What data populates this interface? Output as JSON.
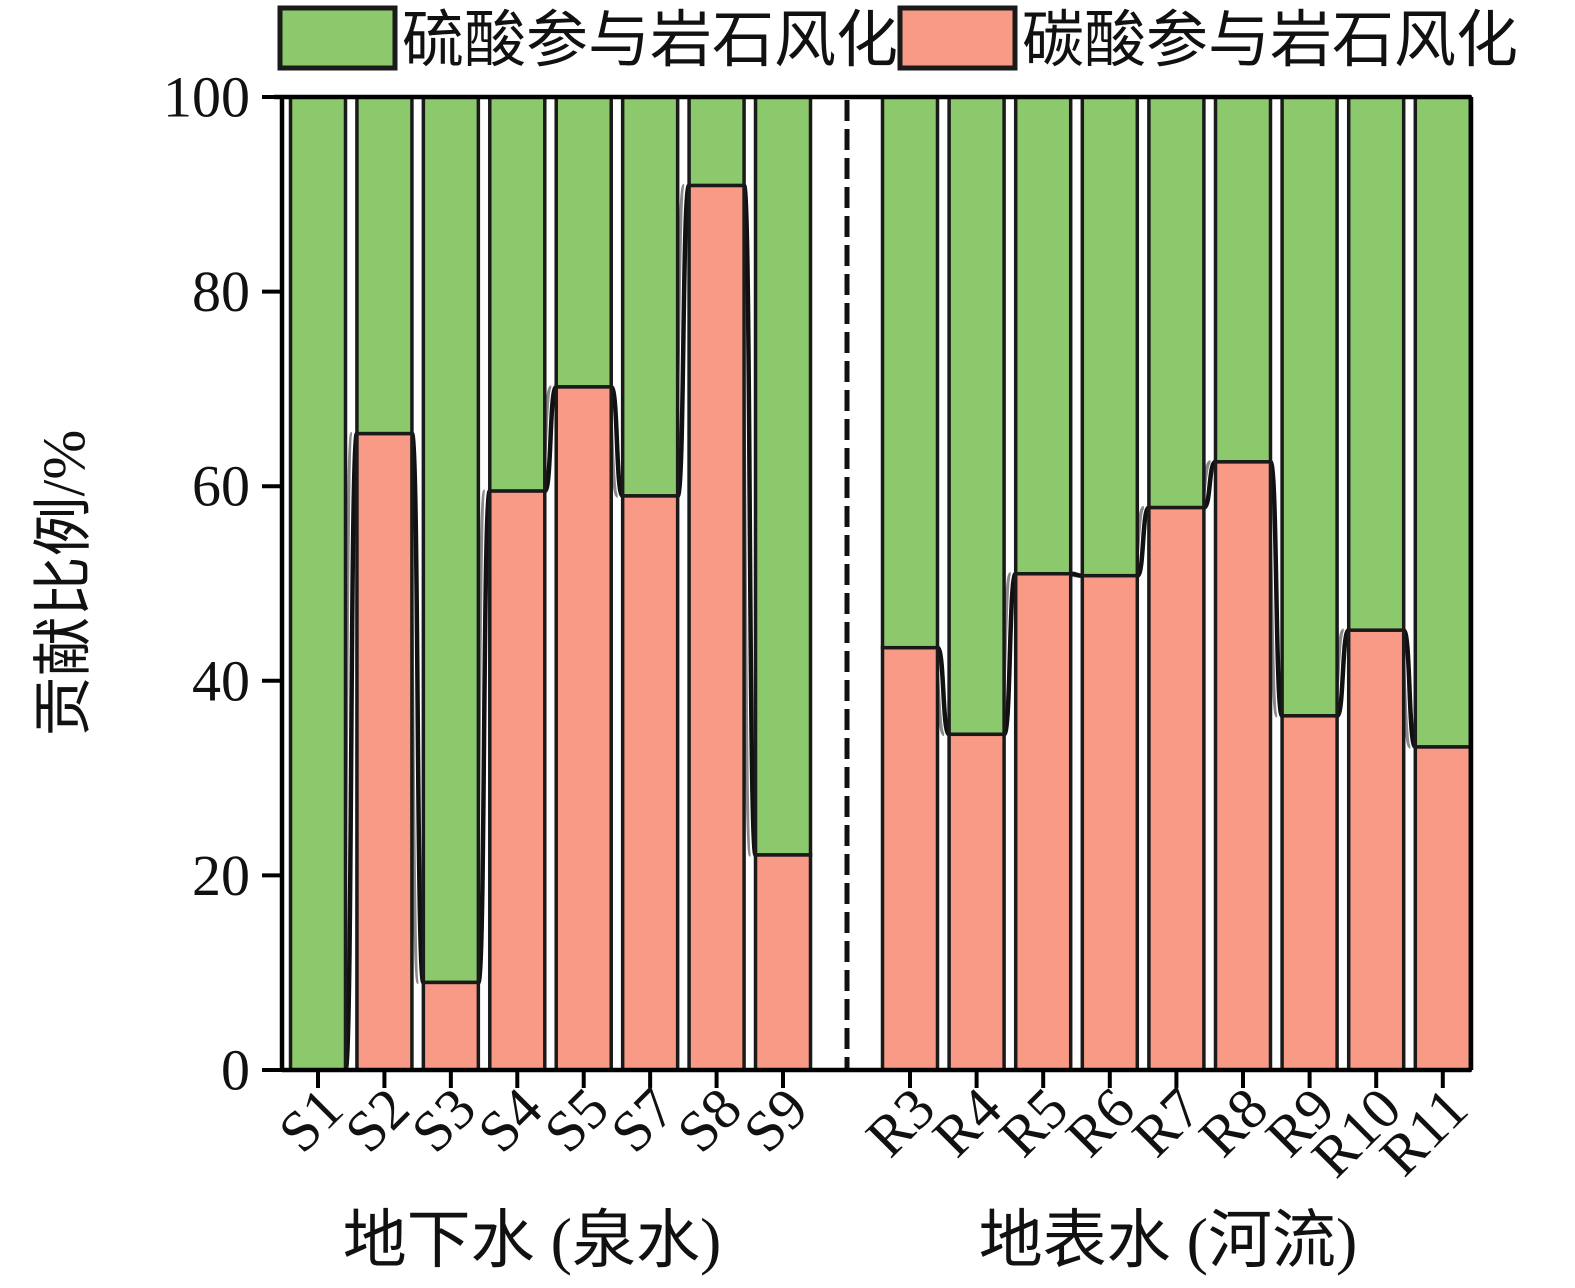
{
  "chart_data": {
    "type": "bar",
    "stacked": true,
    "orientation": "vertical",
    "title": "",
    "ylabel": "贡献比例/%",
    "ylim": [
      0,
      100
    ],
    "yticks": [
      0,
      20,
      40,
      60,
      80,
      100
    ],
    "grid": false,
    "legend_position": "top",
    "legend": [
      {
        "label": "硫酸参与岩石风化",
        "color": "#8cc86c"
      },
      {
        "label": "碳酸参与岩石风化",
        "color": "#f89a86"
      }
    ],
    "group_divider_style": "dashed",
    "groups": [
      {
        "label": "地下水 (泉水)",
        "categories": [
          "S1",
          "S2",
          "S3",
          "S4",
          "S5",
          "S7",
          "S8",
          "S9"
        ],
        "series": [
          {
            "name": "碳酸参与岩石风化",
            "color": "#f89a86",
            "values": [
              0,
              65.4,
              9.0,
              59.5,
              70.2,
              59.0,
              90.9,
              22.1
            ]
          },
          {
            "name": "硫酸参与岩石风化",
            "color": "#8cc86c",
            "values": [
              100,
              34.6,
              91.0,
              40.5,
              29.8,
              41.0,
              9.1,
              77.9
            ]
          }
        ]
      },
      {
        "label": "地表水 (河流)",
        "categories": [
          "R3",
          "R4",
          "R5",
          "R6",
          "R7",
          "R8",
          "R9",
          "R10",
          "R11"
        ],
        "series": [
          {
            "name": "碳酸参与岩石风化",
            "color": "#f89a86",
            "values": [
              43.4,
              34.5,
              51.0,
              50.8,
              57.8,
              62.5,
              36.4,
              45.2,
              33.2
            ]
          },
          {
            "name": "硫酸参与岩石风化",
            "color": "#8cc86c",
            "values": [
              56.6,
              65.5,
              49.0,
              49.2,
              42.2,
              37.5,
              63.6,
              54.8,
              66.8
            ]
          }
        ]
      }
    ],
    "colors": {
      "sulfuric_green": "#8cc86c",
      "carbonic_salmon": "#f89a86",
      "bar_stroke": "#1a1a1a",
      "axis": "#000000",
      "connector": "#111111",
      "connector_shadow": "#8a8a8a"
    }
  }
}
